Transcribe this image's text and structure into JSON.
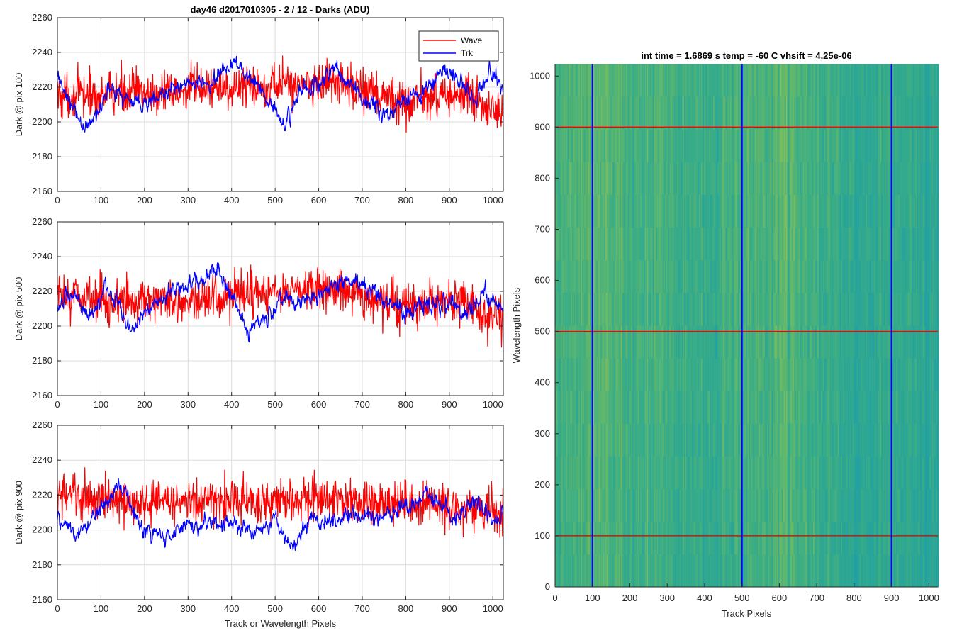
{
  "figure_title": "day46 d2017010305 - 2 / 12 - Darks (ADU)",
  "colors": {
    "wave": "#ff0000",
    "trk": "#0000ff",
    "grid": "#dcdcdc",
    "axis": "#262626"
  },
  "chart_data": [
    {
      "type": "line",
      "title": "day46 d2017010305 - 2 / 12 - Darks (ADU)",
      "xlabel": "",
      "ylabel": "Dark @ pix 100",
      "xlim": [
        0,
        1024
      ],
      "ylim": [
        2160,
        2260
      ],
      "xticks": [
        0,
        100,
        200,
        300,
        400,
        500,
        600,
        700,
        800,
        900,
        1000
      ],
      "yticks": [
        2160,
        2180,
        2200,
        2220,
        2240,
        2260
      ],
      "xtick_labels": [
        "0",
        "100",
        "200",
        "300",
        "400",
        "500",
        "600",
        "700",
        "800",
        "900",
        "1000"
      ],
      "ytick_labels": [
        "2160",
        "2180",
        "2200",
        "2220",
        "2240",
        "2260"
      ],
      "grid": true,
      "legend": "top-right",
      "series": [
        {
          "name": "Wave",
          "color": "#ff0000",
          "anchors": [
            [
              0,
              2215
            ],
            [
              50,
              2216
            ],
            [
              100,
              2214
            ],
            [
              150,
              2218
            ],
            [
              200,
              2217
            ],
            [
              250,
              2216
            ],
            [
              300,
              2218
            ],
            [
              350,
              2220
            ],
            [
              400,
              2219
            ],
            [
              450,
              2221
            ],
            [
              500,
              2222
            ],
            [
              550,
              2222
            ],
            [
              600,
              2223
            ],
            [
              650,
              2222
            ],
            [
              700,
              2218
            ],
            [
              750,
              2213
            ],
            [
              800,
              2212
            ],
            [
              850,
              2214
            ],
            [
              900,
              2216
            ],
            [
              950,
              2214
            ],
            [
              1000,
              2205
            ],
            [
              1024,
              2203
            ]
          ],
          "noise": 9
        },
        {
          "name": "Trk",
          "color": "#0000ff",
          "anchors": [
            [
              0,
              2225
            ],
            [
              30,
              2210
            ],
            [
              60,
              2196
            ],
            [
              90,
              2203
            ],
            [
              120,
              2222
            ],
            [
              150,
              2214
            ],
            [
              200,
              2210
            ],
            [
              250,
              2216
            ],
            [
              300,
              2223
            ],
            [
              350,
              2222
            ],
            [
              380,
              2230
            ],
            [
              410,
              2235
            ],
            [
              440,
              2227
            ],
            [
              480,
              2216
            ],
            [
              520,
              2197
            ],
            [
              560,
              2218
            ],
            [
              600,
              2222
            ],
            [
              640,
              2232
            ],
            [
              680,
              2218
            ],
            [
              720,
              2211
            ],
            [
              760,
              2205
            ],
            [
              800,
              2213
            ],
            [
              850,
              2218
            ],
            [
              890,
              2232
            ],
            [
              930,
              2221
            ],
            [
              960,
              2215
            ],
            [
              1000,
              2230
            ],
            [
              1024,
              2215
            ]
          ],
          "noise": 3
        }
      ]
    },
    {
      "type": "line",
      "title": "",
      "xlabel": "",
      "ylabel": "Dark @ pix 500",
      "xlim": [
        0,
        1024
      ],
      "ylim": [
        2160,
        2260
      ],
      "xticks": [
        0,
        100,
        200,
        300,
        400,
        500,
        600,
        700,
        800,
        900,
        1000
      ],
      "yticks": [
        2160,
        2180,
        2200,
        2220,
        2240,
        2260
      ],
      "xtick_labels": [
        "0",
        "100",
        "200",
        "300",
        "400",
        "500",
        "600",
        "700",
        "800",
        "900",
        "1000"
      ],
      "ytick_labels": [
        "2160",
        "2180",
        "2200",
        "2220",
        "2240",
        "2260"
      ],
      "grid": true,
      "series": [
        {
          "name": "Wave",
          "color": "#ff0000",
          "anchors": [
            [
              0,
              2216
            ],
            [
              50,
              2218
            ],
            [
              100,
              2215
            ],
            [
              150,
              2214
            ],
            [
              200,
              2216
            ],
            [
              250,
              2215
            ],
            [
              300,
              2214
            ],
            [
              350,
              2215
            ],
            [
              400,
              2216
            ],
            [
              450,
              2219
            ],
            [
              500,
              2218
            ],
            [
              550,
              2220
            ],
            [
              600,
              2221
            ],
            [
              650,
              2222
            ],
            [
              700,
              2218
            ],
            [
              750,
              2213
            ],
            [
              800,
              2212
            ],
            [
              850,
              2212
            ],
            [
              900,
              2214
            ],
            [
              950,
              2212
            ],
            [
              1000,
              2205
            ],
            [
              1024,
              2204
            ]
          ],
          "noise": 9
        },
        {
          "name": "Trk",
          "color": "#0000ff",
          "anchors": [
            [
              0,
              2213
            ],
            [
              40,
              2217
            ],
            [
              80,
              2204
            ],
            [
              110,
              2223
            ],
            [
              140,
              2213
            ],
            [
              170,
              2196
            ],
            [
              200,
              2208
            ],
            [
              240,
              2217
            ],
            [
              280,
              2222
            ],
            [
              330,
              2227
            ],
            [
              370,
              2232
            ],
            [
              400,
              2218
            ],
            [
              440,
              2198
            ],
            [
              480,
              2205
            ],
            [
              520,
              2218
            ],
            [
              560,
              2212
            ],
            [
              600,
              2216
            ],
            [
              640,
              2224
            ],
            [
              680,
              2226
            ],
            [
              720,
              2220
            ],
            [
              760,
              2212
            ],
            [
              800,
              2208
            ],
            [
              850,
              2212
            ],
            [
              900,
              2214
            ],
            [
              940,
              2208
            ],
            [
              980,
              2219
            ],
            [
              1024,
              2207
            ]
          ],
          "noise": 3
        }
      ]
    },
    {
      "type": "line",
      "title": "",
      "xlabel": "Track or Wavelength Pixels",
      "ylabel": "Dark @ pix 900",
      "xlim": [
        0,
        1024
      ],
      "ylim": [
        2160,
        2260
      ],
      "xticks": [
        0,
        100,
        200,
        300,
        400,
        500,
        600,
        700,
        800,
        900,
        1000
      ],
      "yticks": [
        2160,
        2180,
        2200,
        2220,
        2240,
        2260
      ],
      "xtick_labels": [
        "0",
        "100",
        "200",
        "300",
        "400",
        "500",
        "600",
        "700",
        "800",
        "900",
        "1000"
      ],
      "ytick_labels": [
        "2160",
        "2180",
        "2200",
        "2220",
        "2240",
        "2260"
      ],
      "grid": true,
      "series": [
        {
          "name": "Wave",
          "color": "#ff0000",
          "anchors": [
            [
              0,
              2220
            ],
            [
              50,
              2219
            ],
            [
              100,
              2218
            ],
            [
              150,
              2216
            ],
            [
              200,
              2216
            ],
            [
              250,
              2217
            ],
            [
              300,
              2216
            ],
            [
              350,
              2216
            ],
            [
              400,
              2218
            ],
            [
              450,
              2217
            ],
            [
              500,
              2216
            ],
            [
              550,
              2217
            ],
            [
              600,
              2218
            ],
            [
              650,
              2217
            ],
            [
              700,
              2216
            ],
            [
              750,
              2215
            ],
            [
              800,
              2214
            ],
            [
              850,
              2215
            ],
            [
              900,
              2213
            ],
            [
              950,
              2212
            ],
            [
              1000,
              2210
            ],
            [
              1024,
              2208
            ]
          ],
          "noise": 9
        },
        {
          "name": "Trk",
          "color": "#0000ff",
          "anchors": [
            [
              0,
              2207
            ],
            [
              40,
              2197
            ],
            [
              80,
              2206
            ],
            [
              120,
              2220
            ],
            [
              140,
              2228
            ],
            [
              170,
              2213
            ],
            [
              200,
              2198
            ],
            [
              250,
              2196
            ],
            [
              300,
              2202
            ],
            [
              350,
              2203
            ],
            [
              400,
              2205
            ],
            [
              450,
              2200
            ],
            [
              500,
              2204
            ],
            [
              540,
              2188
            ],
            [
              580,
              2206
            ],
            [
              620,
              2205
            ],
            [
              660,
              2207
            ],
            [
              700,
              2210
            ],
            [
              740,
              2207
            ],
            [
              780,
              2212
            ],
            [
              820,
              2215
            ],
            [
              850,
              2222
            ],
            [
              880,
              2213
            ],
            [
              920,
              2206
            ],
            [
              960,
              2218
            ],
            [
              1000,
              2204
            ],
            [
              1024,
              2208
            ]
          ],
          "noise": 3
        }
      ]
    },
    {
      "type": "heatmap",
      "title": "int time = 1.6869 s    temp = -60 C    vhsift = 4.25e-06",
      "xlabel": "Track Pixels",
      "ylabel": "Wavelength Pixels",
      "xlim": [
        0,
        1024
      ],
      "ylim": [
        0,
        1024
      ],
      "xticks": [
        0,
        100,
        200,
        300,
        400,
        500,
        600,
        700,
        800,
        900,
        1000
      ],
      "yticks": [
        0,
        100,
        200,
        300,
        400,
        500,
        600,
        700,
        800,
        900,
        1000
      ],
      "xtick_labels": [
        "0",
        "100",
        "200",
        "300",
        "400",
        "500",
        "600",
        "700",
        "800",
        "900",
        "1000"
      ],
      "ytick_labels": [
        "0",
        "100",
        "200",
        "300",
        "400",
        "500",
        "600",
        "700",
        "800",
        "900",
        "1000"
      ],
      "colormap": [
        "#1f9ea8",
        "#26a39c",
        "#3aad86",
        "#63b86b",
        "#94bf55"
      ],
      "column_bright_profile": [
        [
          0,
          0.55
        ],
        [
          60,
          0.65
        ],
        [
          120,
          0.7
        ],
        [
          200,
          0.6
        ],
        [
          300,
          0.55
        ],
        [
          400,
          0.5
        ],
        [
          500,
          0.58
        ],
        [
          560,
          0.62
        ],
        [
          620,
          0.72
        ],
        [
          660,
          0.6
        ],
        [
          720,
          0.5
        ],
        [
          800,
          0.42
        ],
        [
          900,
          0.45
        ],
        [
          1000,
          0.35
        ],
        [
          1024,
          0.33
        ]
      ],
      "vertical_markers": {
        "color": "#0000ff",
        "x": [
          100,
          500,
          900
        ]
      },
      "horizontal_markers": {
        "color": "#ff0000",
        "y": [
          100,
          500,
          900
        ]
      }
    }
  ],
  "legend": {
    "wave_label": "Wave",
    "trk_label": "Trk"
  }
}
